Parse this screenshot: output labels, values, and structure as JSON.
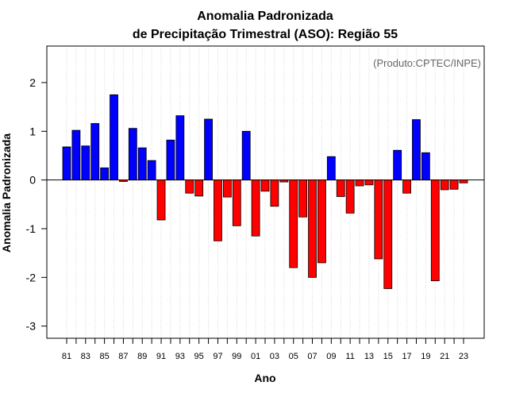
{
  "chart_data": {
    "type": "bar",
    "title_line1": "Anomalia Padronizada",
    "title_line2": "de Precipitação Trimestral (ASO): Região 55",
    "credit": "(Produto:CPTEC/INPE)",
    "xlabel": "Ano",
    "ylabel": "Anomalia Padronizada",
    "ylim": [
      -3.25,
      2.75
    ],
    "yticks": [
      -3,
      -2,
      -1,
      0,
      1,
      2
    ],
    "ytick_labels": [
      "-3",
      "-2",
      "-1",
      "0",
      "1",
      "2"
    ],
    "grid": "vertical dotted lines at each year",
    "colors": {
      "positive": "#0000ff",
      "negative": "#ff0000",
      "outline": "#000000",
      "grid": "#d3d3d3",
      "credit": "#666666"
    },
    "years": [
      1981,
      1982,
      1983,
      1984,
      1985,
      1986,
      1987,
      1988,
      1989,
      1990,
      1991,
      1992,
      1993,
      1994,
      1995,
      1996,
      1997,
      1998,
      1999,
      2000,
      2001,
      2002,
      2003,
      2004,
      2005,
      2006,
      2007,
      2008,
      2009,
      2010,
      2011,
      2012,
      2013,
      2014,
      2015,
      2016,
      2017,
      2018,
      2019,
      2020,
      2021,
      2022,
      2023
    ],
    "xtick_labels": [
      "81",
      "83",
      "85",
      "87",
      "89",
      "91",
      "93",
      "95",
      "97",
      "99",
      "01",
      "03",
      "05",
      "07",
      "09",
      "11",
      "13",
      "15",
      "17",
      "19",
      "21",
      "23"
    ],
    "values": [
      0.68,
      1.02,
      0.7,
      1.16,
      0.25,
      1.75,
      -0.03,
      1.06,
      0.66,
      0.4,
      -0.82,
      0.82,
      1.32,
      -0.27,
      -0.33,
      1.25,
      -1.25,
      -0.35,
      -0.94,
      1.0,
      -1.15,
      -0.23,
      -0.54,
      -0.04,
      -1.8,
      -0.76,
      -2.0,
      -1.7,
      0.48,
      -0.34,
      -0.68,
      -0.12,
      -0.1,
      -1.62,
      -2.23,
      0.61,
      -0.27,
      1.24,
      0.56,
      -2.07,
      -0.2,
      -0.19,
      -0.06
    ]
  }
}
